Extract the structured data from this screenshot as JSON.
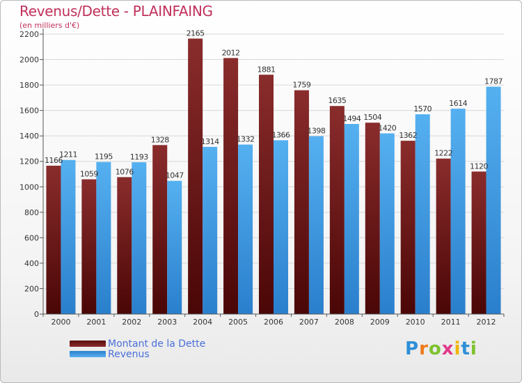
{
  "chart_data": {
    "type": "bar",
    "title": "Revenus/Dette - PLAINFAING",
    "subtitle": "(en milliers d'€)",
    "categories": [
      "2000",
      "2001",
      "2002",
      "2003",
      "2004",
      "2005",
      "2006",
      "2007",
      "2008",
      "2009",
      "2010",
      "2011",
      "2012"
    ],
    "series": [
      {
        "name": "Montant de la Dette",
        "color": "#7a1f1f",
        "values": [
          1166,
          1059,
          1076,
          1328,
          2165,
          2012,
          1881,
          1759,
          1635,
          1504,
          1362,
          1222,
          1120
        ],
        "labels": [
          "1166",
          "1059",
          "1076",
          "1328",
          "2165",
          "2012",
          "1881",
          "1759",
          "1635",
          "1504",
          "1362",
          "1222",
          "1120"
        ]
      },
      {
        "name": "Revenus",
        "color": "#3f9be6",
        "values": [
          1211,
          1195,
          1193,
          1047,
          1314,
          1332,
          1366,
          1398,
          1494,
          1420,
          1570,
          1614,
          1787
        ],
        "labels": [
          "1211",
          "1195",
          "1193",
          "1047",
          "1314",
          "1332",
          "1366",
          "1398",
          "1494",
          "1420",
          "1570",
          "1614",
          "1787"
        ]
      }
    ],
    "ylim": [
      0,
      2200
    ],
    "yticks": [
      0,
      200,
      400,
      600,
      800,
      1000,
      1200,
      1400,
      1600,
      1800,
      2000,
      2200
    ],
    "grid": true,
    "legend": "bottom-left"
  },
  "logo": {
    "letters": [
      "P",
      "r",
      "o",
      "x",
      "i",
      "t",
      "i"
    ],
    "colors": [
      "#2e8fd8",
      "#f07a1a",
      "#7cc22e",
      "#e03a8c",
      "#f0b400",
      "#2e8fd8",
      "#7cc22e"
    ]
  }
}
